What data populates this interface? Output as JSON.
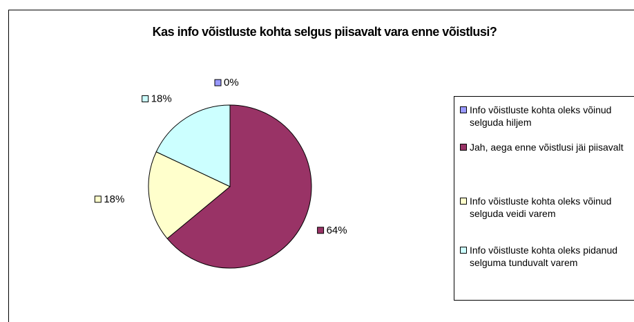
{
  "chart_data": {
    "type": "pie",
    "title": "Kas info võistluste kohta selgus piisavalt vara enne võistlusi?",
    "categories": [
      "Info võistluste kohta oleks võinud selguda hiljem",
      "Jah, aega enne võistlusi jäi piisavalt",
      "Info võistluste kohta oleks võinud selguda veidi varem",
      "Info võistluste kohta oleks pidanud selguma tunduvalt varem"
    ],
    "values": [
      0,
      64,
      18,
      18
    ],
    "value_labels": [
      "0%",
      "64%",
      "18%",
      "18%"
    ],
    "colors": [
      "#9999ff",
      "#993366",
      "#ffffcc",
      "#ccffff"
    ],
    "legend": "right"
  }
}
